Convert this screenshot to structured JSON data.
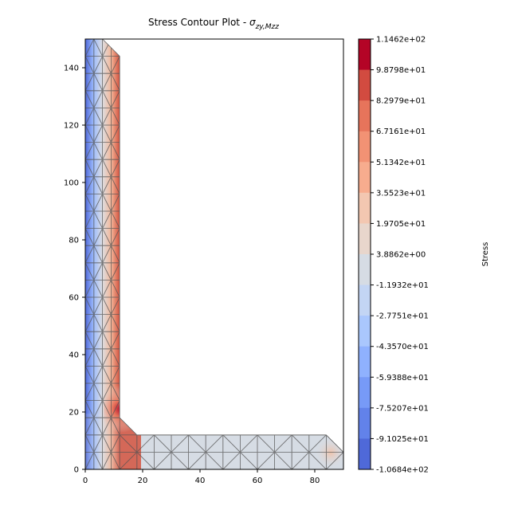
{
  "chart_data": {
    "type": "heatmap",
    "title": "Stress Contour Plot - ",
    "title_symbol": "σ",
    "title_subscript": "zy,Mzz",
    "xlabel": "",
    "ylabel": "",
    "xlim": [
      0,
      90
    ],
    "ylim": [
      0,
      150
    ],
    "x_ticks": [
      "0",
      "20",
      "40",
      "60",
      "80"
    ],
    "y_ticks": [
      "0",
      "20",
      "40",
      "60",
      "80",
      "100",
      "120",
      "140"
    ],
    "x_tick_values": [
      0,
      20,
      40,
      60,
      80
    ],
    "y_tick_values": [
      0,
      20,
      40,
      60,
      80,
      100,
      120,
      140
    ],
    "grid": false,
    "colormap": "coolwarm",
    "section": {
      "shape": "L-section with fillet radii",
      "outline": [
        [
          0,
          0
        ],
        [
          90,
          0
        ],
        [
          90,
          6
        ],
        [
          84,
          12
        ],
        [
          18,
          12
        ],
        [
          12,
          18
        ],
        [
          12,
          144
        ],
        [
          6,
          150
        ],
        [
          0,
          150
        ]
      ],
      "mesh": "triangular",
      "mesh_color": "#555555"
    },
    "field_description": [
      {
        "region": "vertical leg outer edge (x=0)",
        "value": -106.84
      },
      {
        "region": "vertical leg inner edge (x=12)",
        "value": 100
      },
      {
        "region": "vertical leg centerline (x=6)",
        "value": 0
      },
      {
        "region": "horizontal leg",
        "value": 0
      },
      {
        "region": "horizontal leg tip region",
        "value": 25
      },
      {
        "region": "inner fillet corner",
        "value": 114.62
      }
    ],
    "colorbar": {
      "label": "Stress",
      "levels": [
        "1.1462e+02",
        "9.8798e+01",
        "8.2979e+01",
        "6.7161e+01",
        "5.1342e+01",
        "3.5523e+01",
        "1.9705e+01",
        "3.8862e+00",
        "-1.1932e+01",
        "-2.7751e+01",
        "-4.3570e+01",
        "-5.9388e+01",
        "-7.5207e+01",
        "-9.1025e+01",
        "-1.0684e+02"
      ],
      "level_values": [
        114.62,
        98.798,
        82.979,
        67.161,
        51.342,
        35.523,
        19.705,
        3.8862,
        -11.932,
        -27.751,
        -43.57,
        -59.388,
        -75.207,
        -91.025,
        -106.84
      ],
      "band_colors": [
        "#b40426",
        "#d24b40",
        "#e7745b",
        "#f29274",
        "#f7ac8e",
        "#f3c7b1",
        "#e8d6cc",
        "#d6dce4",
        "#c3d5f4",
        "#aac7fd",
        "#8fb1fe",
        "#779af7",
        "#6282ea",
        "#4f69d9"
      ]
    }
  }
}
